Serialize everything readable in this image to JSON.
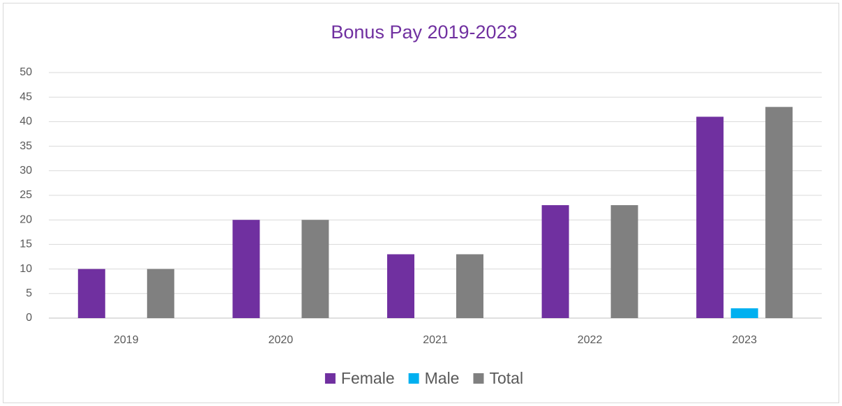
{
  "chart_data": {
    "type": "bar",
    "title": "Bonus Pay 2019-2023",
    "categories": [
      "2019",
      "2020",
      "2021",
      "2022",
      "2023"
    ],
    "series": [
      {
        "name": "Female",
        "color": "#7030a0",
        "values": [
          10,
          20,
          13,
          23,
          41
        ]
      },
      {
        "name": "Male",
        "color": "#00b0f0",
        "values": [
          0,
          0,
          0,
          0,
          2
        ]
      },
      {
        "name": "Total",
        "color": "#808080",
        "values": [
          10,
          20,
          13,
          23,
          43
        ]
      }
    ],
    "ylim": [
      0,
      50
    ],
    "yticks": [
      0,
      5,
      10,
      15,
      20,
      25,
      30,
      35,
      40,
      45,
      50
    ],
    "grid": true,
    "legend": "bottom"
  }
}
